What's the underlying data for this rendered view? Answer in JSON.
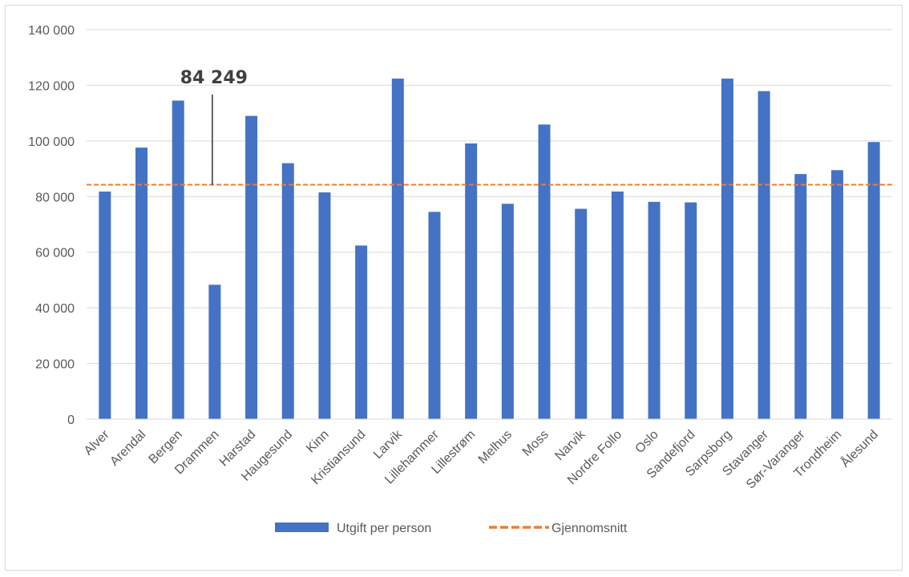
{
  "chart_data": {
    "type": "bar",
    "categories": [
      "Alver",
      "Arendal",
      "Bergen",
      "Drammen",
      "Harstad",
      "Haugesund",
      "Kinn",
      "Kristiansund",
      "Larvik",
      "Lillehammer",
      "Lillestrøm",
      "Melhus",
      "Moss",
      "Narvik",
      "Nordre Follo",
      "Oslo",
      "Sandefjord",
      "Sarpsborg",
      "Stavanger",
      "Sør-Varanger",
      "Trondheim",
      "Ålesund"
    ],
    "series": [
      {
        "name": "Utgift per person",
        "type": "bar",
        "color": "#4472c4",
        "values": [
          81800,
          97600,
          114500,
          48300,
          109000,
          92000,
          81500,
          62400,
          122400,
          74500,
          99100,
          77400,
          105900,
          75600,
          81800,
          78100,
          77900,
          122400,
          117900,
          88100,
          89500,
          99600
        ]
      },
      {
        "name": "Gjennomsnitt",
        "type": "line",
        "style": "dashed",
        "color": "#ed7d31",
        "value": 84249
      }
    ],
    "annotations": [
      {
        "text": "84 249",
        "category": "Drammen",
        "value": 84249
      }
    ],
    "yticks": [
      "0",
      "20 000",
      "40 000",
      "60 000",
      "80 000",
      "100 000",
      "120 000",
      "140 000"
    ],
    "ytick_values": [
      0,
      20000,
      40000,
      60000,
      80000,
      100000,
      120000,
      140000
    ],
    "ylim": [
      0,
      140000
    ],
    "grid": true,
    "legend": "bottom",
    "title": "",
    "xlabel": "",
    "ylabel": ""
  }
}
